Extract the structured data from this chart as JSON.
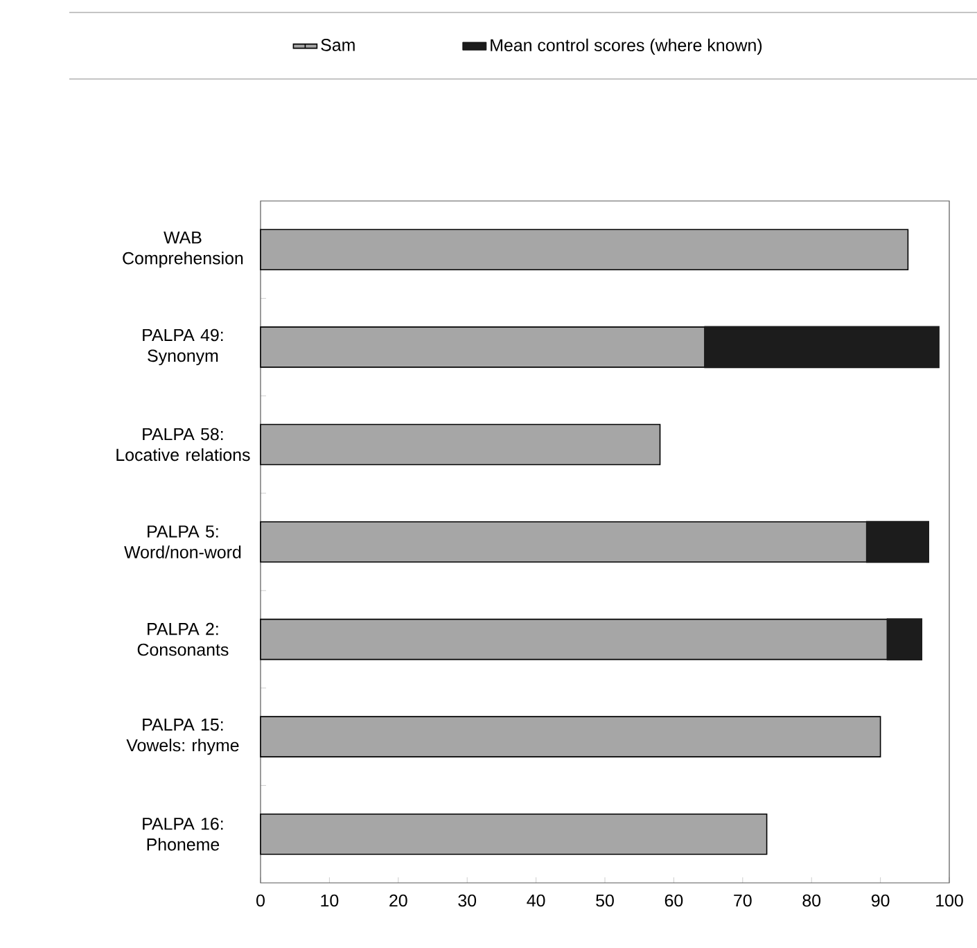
{
  "chart_data": {
    "type": "bar",
    "orientation": "horizontal",
    "stacked": true,
    "categories": [
      "WAB Comprehension",
      "PALPA 49: Synonym",
      "PALPA 58: Locative relations",
      "PALPA 5: Word/non-word",
      "PALPA 2: Consonants",
      "PALPA 15: Vowels: rhyme",
      "PALPA 16: Phoneme"
    ],
    "series": [
      {
        "name": "Sam",
        "color": "#a6a6a6",
        "values": [
          94,
          64.5,
          58,
          88,
          91,
          90,
          73.5
        ]
      },
      {
        "name": "Mean control scores (where known)",
        "color": "#1c1c1c",
        "values": [
          null,
          34,
          null,
          9,
          5,
          null,
          null
        ]
      }
    ],
    "xlim": [
      0,
      100
    ],
    "xticks": [
      0,
      10,
      20,
      30,
      40,
      50,
      60,
      70,
      80,
      90,
      100
    ],
    "legend": "top",
    "grid": false
  }
}
